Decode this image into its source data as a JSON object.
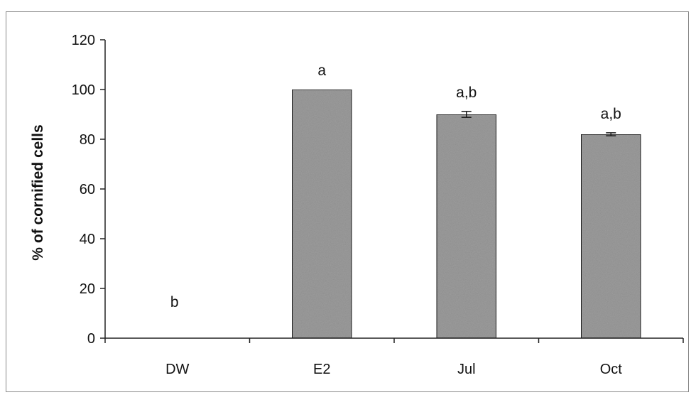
{
  "chart_data": {
    "type": "bar",
    "title": "",
    "xlabel": "",
    "ylabel": "% of cornified cells",
    "categories": [
      "DW",
      "E2",
      "Jul",
      "Oct"
    ],
    "values": [
      0,
      100,
      90,
      82
    ],
    "errors": [
      0,
      0,
      1.2,
      0.6
    ],
    "annotations": [
      "b",
      "a",
      "a,b",
      "a,b"
    ],
    "ylim": [
      0,
      120
    ],
    "yticks": [
      0,
      20,
      40,
      60,
      80,
      100,
      120
    ],
    "grid": false,
    "legend": "none",
    "colors": {
      "bar_fill": "#9c9c9c",
      "bar_stroke": "#1a1a1a",
      "axis": "#222222",
      "frame": "#8a8a8a"
    }
  }
}
